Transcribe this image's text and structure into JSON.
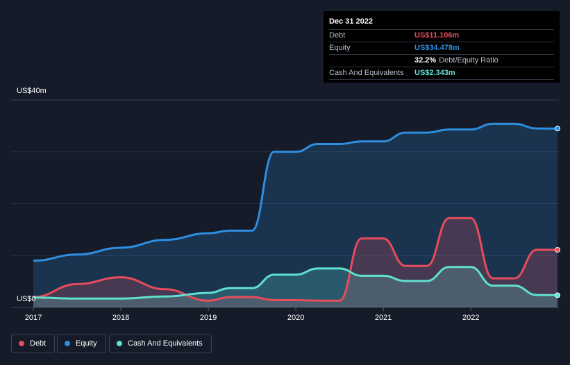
{
  "tooltip": {
    "date": "Dec 31 2022",
    "rows": [
      {
        "label": "Debt",
        "value": "US$11.106m",
        "color": "#e64c5b"
      },
      {
        "label": "Equity",
        "value": "US$34.478m",
        "color": "#2e8ee0"
      },
      {
        "label": "",
        "value": "32.2%",
        "extra": "Debt/Equity Ratio",
        "color": "#ffffff"
      },
      {
        "label": "Cash And Equivalents",
        "value": "US$2.343m",
        "color": "#60e0d0"
      }
    ]
  },
  "legend": [
    {
      "label": "Debt",
      "color": "#e64c5b"
    },
    {
      "label": "Equity",
      "color": "#2e8ee0"
    },
    {
      "label": "Cash And Equivalents",
      "color": "#60e0d0"
    }
  ],
  "chart_data": {
    "type": "area",
    "y_top_label": "US$40m",
    "y_bottom_label": "US$0",
    "ylim": [
      0,
      40
    ],
    "xlim": [
      2017.0,
      2022.99
    ],
    "x_ticks": [
      "2017",
      "2018",
      "2019",
      "2020",
      "2021",
      "2022"
    ],
    "grid": true,
    "series": [
      {
        "name": "Equity",
        "color": "#2e8ee0",
        "x": [
          2017.0,
          2017.5,
          2018.0,
          2018.5,
          2019.0,
          2019.25,
          2019.5,
          2019.75,
          2020.0,
          2020.25,
          2020.5,
          2020.75,
          2021.0,
          2021.25,
          2021.5,
          2021.75,
          2022.0,
          2022.25,
          2022.5,
          2022.75,
          2022.99
        ],
        "y": [
          9.0,
          10.2,
          11.5,
          13.0,
          14.3,
          14.8,
          14.8,
          30.0,
          30.0,
          31.5,
          31.5,
          32.0,
          32.0,
          33.7,
          33.7,
          34.3,
          34.3,
          35.4,
          35.4,
          34.5,
          34.478
        ]
      },
      {
        "name": "Debt",
        "color": "#e64c5b",
        "x": [
          2017.0,
          2017.5,
          2018.0,
          2018.5,
          2019.0,
          2019.25,
          2019.5,
          2019.75,
          2020.0,
          2020.25,
          2020.5,
          2020.75,
          2021.0,
          2021.25,
          2021.5,
          2021.75,
          2022.0,
          2022.25,
          2022.5,
          2022.75,
          2022.99
        ],
        "y": [
          2.0,
          4.5,
          5.8,
          3.5,
          1.3,
          2.0,
          2.0,
          1.4,
          1.4,
          1.3,
          1.3,
          13.3,
          13.3,
          8.0,
          8.0,
          17.2,
          17.2,
          5.6,
          5.6,
          11.1,
          11.106
        ]
      },
      {
        "name": "Cash And Equivalents",
        "color": "#60e0d0",
        "x": [
          2017.0,
          2017.5,
          2018.0,
          2018.5,
          2019.0,
          2019.25,
          2019.5,
          2019.75,
          2020.0,
          2020.25,
          2020.5,
          2020.75,
          2021.0,
          2021.25,
          2021.5,
          2021.75,
          2022.0,
          2022.25,
          2022.5,
          2022.75,
          2022.99
        ],
        "y": [
          1.9,
          1.7,
          1.7,
          2.1,
          2.8,
          3.7,
          3.7,
          6.3,
          6.3,
          7.5,
          7.5,
          6.1,
          6.1,
          5.1,
          5.1,
          7.8,
          7.8,
          4.2,
          4.2,
          2.4,
          2.343
        ]
      }
    ]
  }
}
